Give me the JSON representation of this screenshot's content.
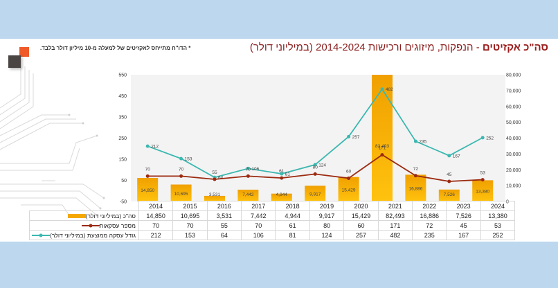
{
  "header": {
    "title_bold": "סה\"כ אקזיטים",
    "title_rest": " - הנפקות, מיזוגים ורכישות 2014-2024 (במיליוני דולר)",
    "note": "* הדו\"ח מתייחס לאקזיטים של למעלה מ-10 מיליון דולר בלבד."
  },
  "colors": {
    "bar": "#f5a800",
    "deals_line": "#9b2a10",
    "avg_line": "#3bb8b0",
    "title": "#8b1e1e",
    "background": "#bdd7ee"
  },
  "chart_data": {
    "type": "bar+line",
    "title": "סה\"כ אקזיטים - הנפקות, מיזוגים ורכישות 2014-2024 (במיליוני דולר)",
    "categories": [
      "2014",
      "2015",
      "2016",
      "2017",
      "2018",
      "2019",
      "2020",
      "2021",
      "2022",
      "2023",
      "2024"
    ],
    "series": [
      {
        "name": "סה\"כ (במיליוני דולר)",
        "type": "bar",
        "axis": "right",
        "values": [
          14850,
          10695,
          3531,
          7442,
          4944,
          9917,
          15429,
          82493,
          16886,
          7526,
          13380
        ],
        "labels": [
          "14,850",
          "10,695",
          "3,531",
          "7,442",
          "4,944",
          "9,917",
          "15,429",
          "82,493",
          "16,886",
          "7,526",
          "13,380"
        ]
      },
      {
        "name": "מספר עסקאות",
        "type": "line",
        "axis": "left",
        "values": [
          70,
          70,
          55,
          70,
          61,
          80,
          60,
          171,
          72,
          45,
          53
        ]
      },
      {
        "name": "גודל עסקה ממוצעת (במיליוני דולר)",
        "type": "line",
        "axis": "left",
        "values": [
          212,
          153,
          64,
          106,
          81,
          124,
          257,
          482,
          235,
          167,
          252
        ]
      }
    ],
    "left_axis": {
      "ticks": [
        "550",
        "450",
        "350",
        "250",
        "150",
        "50",
        "-50"
      ],
      "range": [
        -50,
        550
      ]
    },
    "right_axis": {
      "ticks": [
        "80,000",
        "70,000",
        "60,000",
        "50,000",
        "40,000",
        "30,000",
        "20,000",
        "10,000",
        "0"
      ],
      "range": [
        0,
        80000
      ]
    },
    "legend_position": "table-below",
    "grid": false
  },
  "table": {
    "rows": [
      {
        "label": "סה\"כ (במיליוני דולר)",
        "cells": [
          "14,850",
          "10,695",
          "3,531",
          "7,442",
          "4,944",
          "9,917",
          "15,429",
          "82,493",
          "16,886",
          "7,526",
          "13,380"
        ]
      },
      {
        "label": "מספר עסקאות",
        "cells": [
          "70",
          "70",
          "55",
          "70",
          "61",
          "80",
          "60",
          "171",
          "72",
          "45",
          "53"
        ]
      },
      {
        "label": "גודל עסקה ממוצעת (במיליוני דולר)",
        "cells": [
          "212",
          "153",
          "64",
          "106",
          "81",
          "124",
          "257",
          "482",
          "235",
          "167",
          "252"
        ]
      }
    ]
  }
}
